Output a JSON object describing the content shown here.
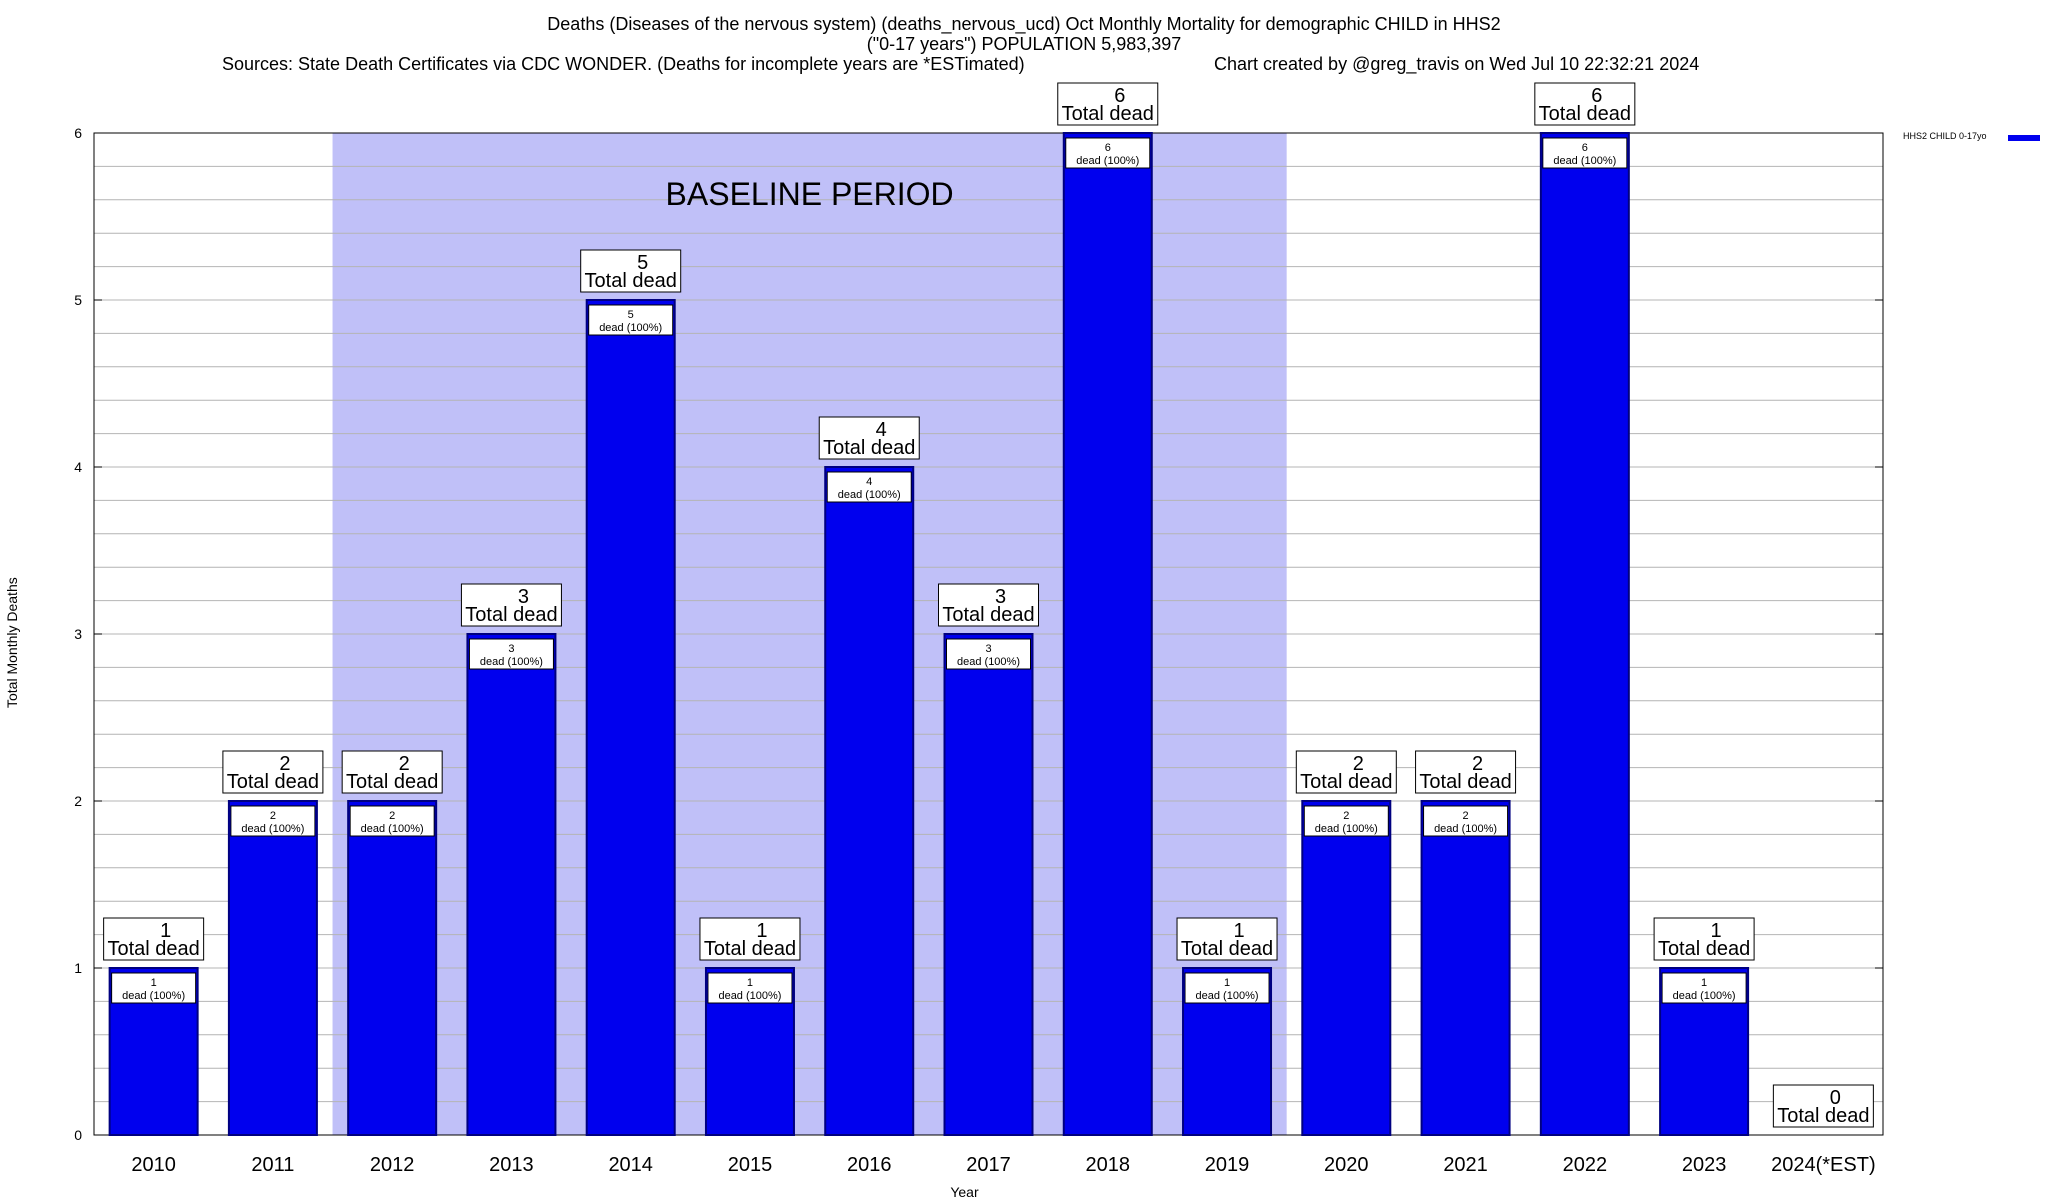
{
  "header": {
    "title_line1": "Deaths (Diseases of the nervous system) (deaths_nervous_ucd) Oct Monthly Mortality for demographic CHILD in HHS2",
    "title_line2": "(\"0-17 years\") POPULATION 5,983,397",
    "sources": "Sources: State Death Certificates via CDC WONDER. (Deaths for incomplete years are *ESTimated)",
    "credit": "Chart created by @greg_travis on Wed Jul 10 22:32:21 2024"
  },
  "chart_data": {
    "type": "bar",
    "categories": [
      "2010",
      "2011",
      "2012",
      "2013",
      "2014",
      "2015",
      "2016",
      "2017",
      "2018",
      "2019",
      "2020",
      "2021",
      "2022",
      "2023",
      "2024(*EST)"
    ],
    "series": [
      {
        "name": "HHS2 CHILD 0-17yo",
        "values": [
          1,
          2,
          2,
          3,
          5,
          1,
          4,
          3,
          6,
          1,
          2,
          2,
          6,
          1,
          0
        ],
        "color": "#0000ee"
      }
    ],
    "bar_label_suffix": "Total dead",
    "inner_label_suffix": "dead (100%)",
    "xlabel": "Year",
    "ylabel": "Total Monthly Deaths",
    "ylim": [
      0,
      6
    ],
    "yticks": [
      0,
      1,
      2,
      3,
      4,
      5,
      6
    ],
    "grid": true,
    "legend_position": "top-right",
    "baseline": {
      "label": "BASELINE PERIOD",
      "from": "2012",
      "to": "2019",
      "color": "#c0c0f8"
    }
  },
  "colors": {
    "bar": "#0000ee",
    "bar_outline": "#000080",
    "baseline_fill": "#c0c0f8",
    "grid": "#b4b4b4"
  }
}
